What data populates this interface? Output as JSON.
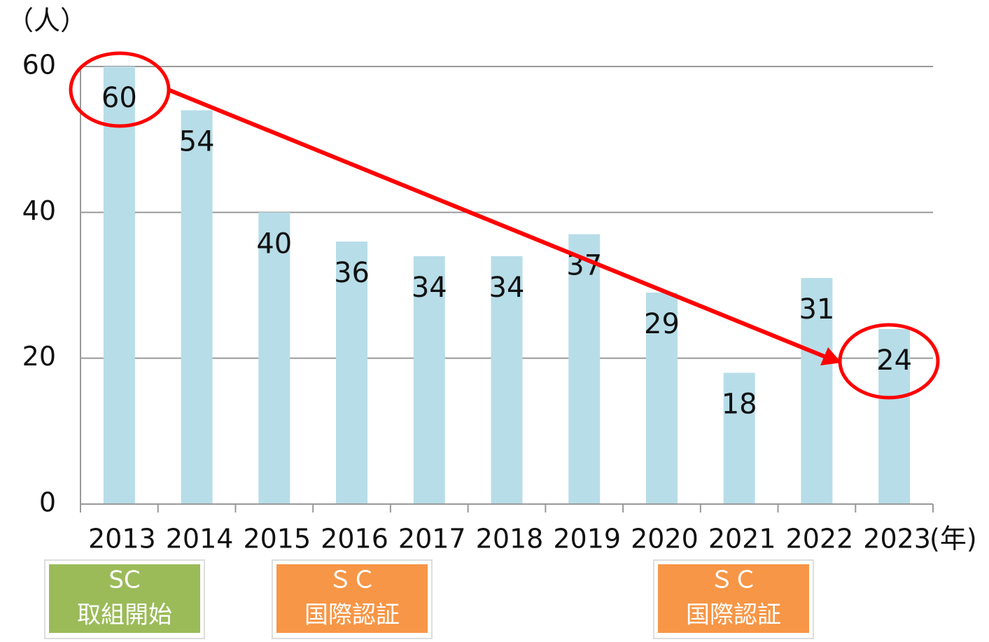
{
  "chart_data": {
    "type": "bar",
    "y_label": "（人）",
    "x_label": "(年)",
    "categories": [
      "2013",
      "2014",
      "2015",
      "2016",
      "2017",
      "2018",
      "2019",
      "2020",
      "2021",
      "2022",
      "2023"
    ],
    "values": [
      60,
      54,
      40,
      36,
      34,
      34,
      37,
      29,
      18,
      31,
      24
    ],
    "color": "#b7dde8",
    "ylim": [
      0,
      60
    ],
    "yticks": [
      0,
      20,
      40,
      60
    ],
    "grid": true,
    "annotations": [
      [
        "SC",
        "取組開始"
      ],
      [
        "ＳＣ",
        "国際認証"
      ],
      [
        "ＳＣ",
        "国際認証"
      ]
    ]
  }
}
